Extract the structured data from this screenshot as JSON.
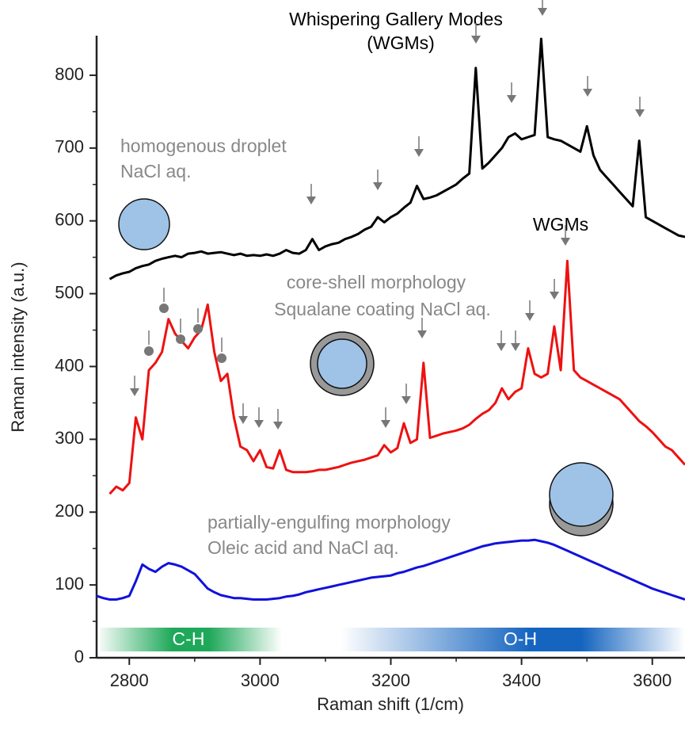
{
  "chart_data": {
    "type": "line",
    "xlabel": "Raman shift (1/cm)",
    "ylabel": "Raman intensity (a.u.)",
    "xlim": [
      2750,
      3650
    ],
    "ylim": [
      0,
      850
    ],
    "xticks": [
      2800,
      3000,
      3200,
      3400,
      3600
    ],
    "yticks": [
      0,
      100,
      200,
      300,
      400,
      500,
      600,
      700,
      800
    ],
    "annotations": [
      "Whispering Gallery Modes",
      "(WGMs)",
      "WGMs",
      "homogenous droplet",
      "NaCl aq.",
      "core-shell morphology",
      "Squalane coating NaCl aq.",
      "partially-engulfing morphology",
      "Oleic acid and NaCl aq.",
      "C-H",
      "O-H"
    ],
    "x": [
      2750,
      2760,
      2770,
      2780,
      2790,
      2800,
      2810,
      2820,
      2830,
      2840,
      2850,
      2860,
      2870,
      2880,
      2890,
      2900,
      2910,
      2920,
      2930,
      2940,
      2950,
      2960,
      2970,
      2980,
      2990,
      3000,
      3010,
      3020,
      3030,
      3040,
      3050,
      3060,
      3070,
      3080,
      3090,
      3100,
      3110,
      3120,
      3130,
      3140,
      3150,
      3160,
      3170,
      3180,
      3190,
      3200,
      3210,
      3220,
      3230,
      3240,
      3250,
      3260,
      3270,
      3280,
      3290,
      3300,
      3310,
      3320,
      3330,
      3340,
      3350,
      3360,
      3370,
      3380,
      3390,
      3400,
      3410,
      3420,
      3430,
      3440,
      3450,
      3460,
      3470,
      3480,
      3490,
      3500,
      3510,
      3520,
      3530,
      3540,
      3550,
      3560,
      3570,
      3580,
      3590,
      3600,
      3610,
      3620,
      3630,
      3640,
      3650
    ],
    "series": [
      {
        "color": "#000000",
        "values": [
          null,
          null,
          520,
          525,
          528,
          530,
          535,
          538,
          540,
          545,
          548,
          550,
          552,
          550,
          555,
          556,
          558,
          555,
          556,
          557,
          555,
          553,
          555,
          552,
          553,
          552,
          554,
          552,
          555,
          560,
          556,
          555,
          560,
          575,
          560,
          565,
          568,
          570,
          575,
          578,
          582,
          588,
          592,
          605,
          598,
          605,
          610,
          618,
          625,
          648,
          630,
          632,
          635,
          640,
          645,
          650,
          658,
          665,
          810,
          672,
          680,
          690,
          700,
          715,
          720,
          712,
          715,
          718,
          850,
          715,
          712,
          710,
          705,
          700,
          695,
          730,
          690,
          670,
          660,
          650,
          640,
          630,
          620,
          710,
          605,
          600,
          595,
          590,
          585,
          580,
          578
        ]
      },
      {
        "color": "#ee1111",
        "values": [
          null,
          null,
          225,
          235,
          230,
          240,
          330,
          300,
          395,
          405,
          420,
          465,
          445,
          435,
          425,
          440,
          450,
          485,
          420,
          380,
          390,
          330,
          290,
          285,
          270,
          285,
          262,
          260,
          285,
          258,
          255,
          255,
          255,
          256,
          258,
          258,
          260,
          262,
          265,
          268,
          270,
          272,
          275,
          278,
          292,
          282,
          288,
          322,
          295,
          300,
          405,
          302,
          305,
          308,
          310,
          312,
          315,
          320,
          328,
          335,
          340,
          350,
          370,
          355,
          365,
          370,
          425,
          390,
          385,
          390,
          455,
          395,
          545,
          395,
          385,
          380,
          375,
          370,
          365,
          360,
          355,
          345,
          335,
          325,
          318,
          310,
          300,
          290,
          285,
          275,
          265
        ]
      },
      {
        "color": "#1111dd",
        "values": [
          85,
          82,
          80,
          80,
          82,
          85,
          105,
          128,
          122,
          118,
          125,
          130,
          128,
          125,
          120,
          115,
          105,
          95,
          90,
          86,
          84,
          82,
          82,
          81,
          80,
          80,
          80,
          81,
          82,
          84,
          85,
          87,
          90,
          92,
          94,
          96,
          98,
          100,
          102,
          104,
          106,
          108,
          110,
          111,
          112,
          113,
          116,
          118,
          121,
          124,
          126,
          129,
          132,
          135,
          138,
          141,
          144,
          147,
          150,
          153,
          155,
          157,
          158,
          159,
          160,
          161,
          161,
          162,
          160,
          158,
          155,
          151,
          147,
          143,
          139,
          135,
          131,
          127,
          123,
          119,
          115,
          111,
          107,
          103,
          99,
          95,
          92,
          89,
          86,
          83,
          80
        ]
      }
    ]
  }
}
